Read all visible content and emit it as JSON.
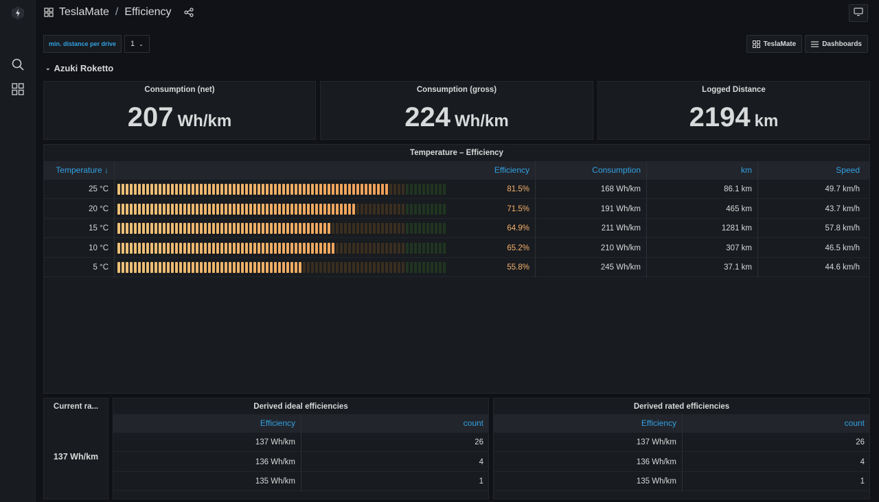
{
  "breadcrumb": {
    "folder": "TeslaMate",
    "separator": "/",
    "dashboard": "Efficiency"
  },
  "variable": {
    "label": "min. distance per drive",
    "value": "1"
  },
  "links": {
    "teslamate": "TeslaMate",
    "dashboards": "Dashboards"
  },
  "row_title": "Azuki Roketto",
  "stats": [
    {
      "title": "Consumption (net)",
      "value": "207",
      "unit": "Wh/km"
    },
    {
      "title": "Consumption (gross)",
      "value": "224",
      "unit": "Wh/km"
    },
    {
      "title": "Logged Distance",
      "value": "2194",
      "unit": "km"
    }
  ],
  "temp_table": {
    "title": "Temperature – Efficiency",
    "headers": {
      "temperature": "Temperature ↓",
      "efficiency": "Efficiency",
      "consumption": "Consumption",
      "km": "km",
      "speed": "Speed"
    },
    "rows": [
      {
        "temperature": "25 °C",
        "efficiency": "81.5%",
        "efficiency_value": 0.815,
        "consumption": "168 Wh/km",
        "km": "86.1 km",
        "speed": "49.7 km/h"
      },
      {
        "temperature": "20 °C",
        "efficiency": "71.5%",
        "efficiency_value": 0.715,
        "consumption": "191 Wh/km",
        "km": "465 km",
        "speed": "43.7 km/h"
      },
      {
        "temperature": "15 °C",
        "efficiency": "64.9%",
        "efficiency_value": 0.649,
        "consumption": "211 Wh/km",
        "km": "1281 km",
        "speed": "57.8 km/h"
      },
      {
        "temperature": "10 °C",
        "efficiency": "65.2%",
        "efficiency_value": 0.652,
        "consumption": "210 Wh/km",
        "km": "307 km",
        "speed": "46.5 km/h"
      },
      {
        "temperature": "5 °C",
        "efficiency": "55.8%",
        "efficiency_value": 0.558,
        "consumption": "245 Wh/km",
        "km": "37.1 km",
        "speed": "44.6 km/h"
      }
    ]
  },
  "current_rated": {
    "title": "Current ra...",
    "value": "137 Wh/km"
  },
  "ideal_table": {
    "title": "Derived ideal efficiencies",
    "headers": {
      "efficiency": "Efficiency",
      "count": "count"
    },
    "rows": [
      {
        "efficiency": "137 Wh/km",
        "count": "26"
      },
      {
        "efficiency": "136 Wh/km",
        "count": "4"
      },
      {
        "efficiency": "135 Wh/km",
        "count": "1"
      }
    ]
  },
  "rated_table": {
    "title": "Derived rated efficiencies",
    "headers": {
      "efficiency": "Efficiency",
      "count": "count"
    },
    "rows": [
      {
        "efficiency": "137 Wh/km",
        "count": "26"
      },
      {
        "efficiency": "136 Wh/km",
        "count": "4"
      },
      {
        "efficiency": "135 Wh/km",
        "count": "1"
      }
    ]
  },
  "colors": {
    "accent": "#33a2e5",
    "efficiency_text": "#f7b26e",
    "gauge_lit": "#f2a65a",
    "gauge_unlit_warm": "#3a2e1f",
    "gauge_unlit_green": "#203521"
  },
  "icons": {
    "logo": "grafana-logo-icon",
    "search": "search-icon",
    "dashboards": "dashboards-grid-icon",
    "share": "share-icon",
    "tv": "tv-mode-icon"
  }
}
